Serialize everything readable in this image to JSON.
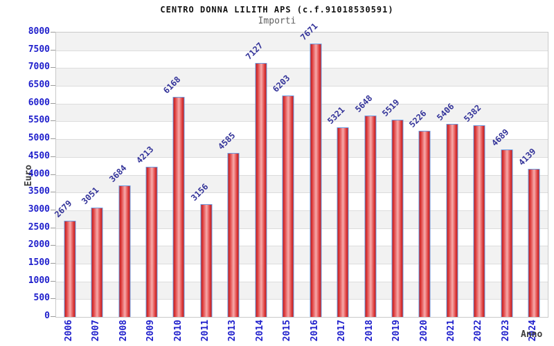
{
  "chart_data": {
    "type": "bar",
    "title": "CENTRO DONNA LILITH APS (c.f.91018530591)",
    "subtitle": "Importi",
    "xlabel": "Anno",
    "ylabel": "Euro",
    "categories": [
      "2006",
      "2007",
      "2008",
      "2009",
      "2010",
      "2011",
      "2013",
      "2014",
      "2015",
      "2016",
      "2017",
      "2018",
      "2019",
      "2020",
      "2021",
      "2022",
      "2023",
      "2024"
    ],
    "values": [
      2679,
      3051,
      3684,
      4213,
      6168,
      3156,
      4585,
      7127,
      6203,
      7671,
      5321,
      5648,
      5519,
      5226,
      5406,
      5382,
      4689,
      4139
    ],
    "ylim": [
      0,
      8000
    ],
    "ytick_step": 500,
    "grid": "horizontal gridlines with alternating shaded bands",
    "legend": "none",
    "colors": {
      "axis_tick_label": "#2020cc",
      "value_label": "#333399",
      "bar_border": "#6b9be0",
      "bar_fill_dark": "#c01a1a",
      "bar_fill_mid": "#e04343",
      "bar_fill_light": "#f7aaaa",
      "band_shade": "#f2f2f2",
      "title_color": "#101010",
      "subtitle_color": "#5f5f5f"
    }
  }
}
